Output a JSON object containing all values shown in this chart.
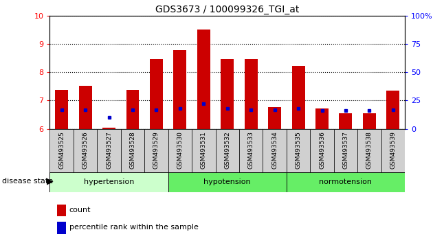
{
  "title": "GDS3673 / 100099326_TGI_at",
  "samples": [
    "GSM493525",
    "GSM493526",
    "GSM493527",
    "GSM493528",
    "GSM493529",
    "GSM493530",
    "GSM493531",
    "GSM493532",
    "GSM493533",
    "GSM493534",
    "GSM493535",
    "GSM493536",
    "GSM493537",
    "GSM493538",
    "GSM493539"
  ],
  "count_values": [
    7.38,
    7.52,
    6.05,
    7.38,
    8.48,
    8.78,
    9.52,
    8.47,
    8.47,
    6.78,
    8.22,
    6.72,
    6.55,
    6.55,
    7.35
  ],
  "percentile_pct": [
    17,
    17,
    10,
    17,
    17,
    18,
    22,
    18,
    17,
    17,
    18,
    16,
    16,
    16,
    17
  ],
  "group_info": [
    {
      "label": "hypertension",
      "indices": [
        0,
        1,
        2,
        3,
        4
      ],
      "color": "#ccffcc"
    },
    {
      "label": "hypotension",
      "indices": [
        5,
        6,
        7,
        8,
        9
      ],
      "color": "#66ee66"
    },
    {
      "label": "normotension",
      "indices": [
        10,
        11,
        12,
        13,
        14
      ],
      "color": "#66ee66"
    }
  ],
  "ylim_left": [
    6,
    10
  ],
  "ylim_right": [
    0,
    100
  ],
  "yticks_left": [
    6,
    7,
    8,
    9,
    10
  ],
  "yticks_right": [
    0,
    25,
    50,
    75,
    100
  ],
  "bar_color": "#cc0000",
  "percentile_color": "#0000cc",
  "bar_width": 0.55,
  "bar_base": 6.0
}
